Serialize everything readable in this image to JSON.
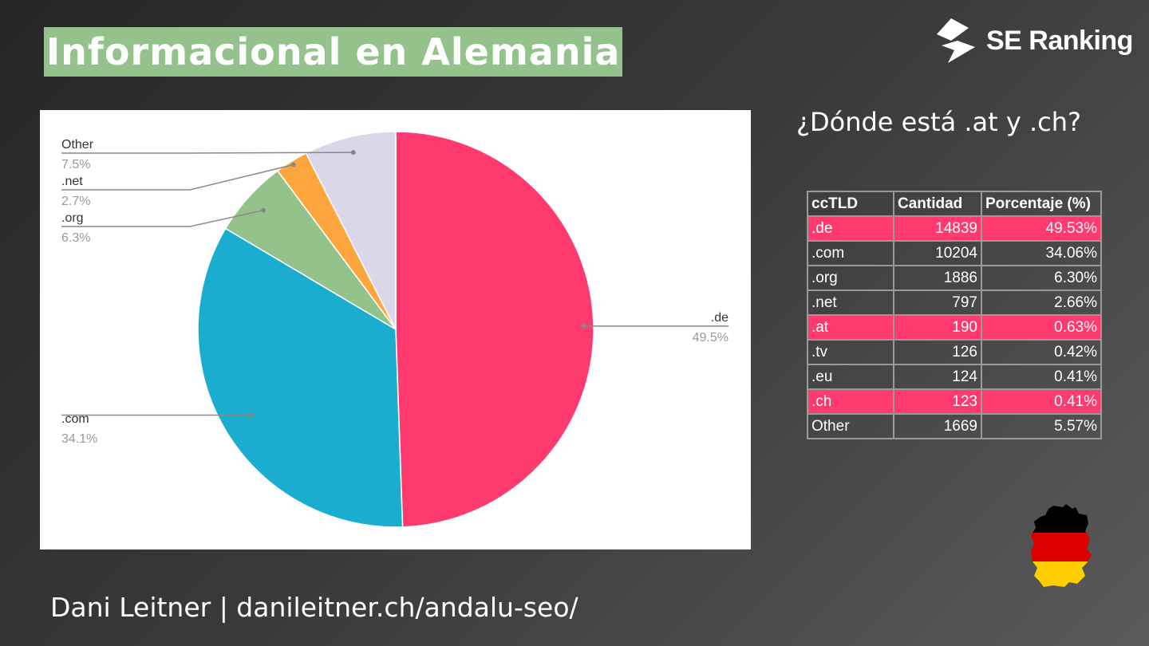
{
  "header": {
    "title": "Informacional en Alemania"
  },
  "brand": {
    "name": "SE Ranking"
  },
  "question": "¿Dónde está .at y .ch?",
  "table": {
    "headers": [
      "ccTLD",
      "Cantidad",
      "Porcentaje (%)"
    ],
    "rows": [
      {
        "tld": ".de",
        "count": "14839",
        "pct": "49.53%",
        "highlight": true
      },
      {
        "tld": ".com",
        "count": "10204",
        "pct": "34.06%",
        "highlight": false
      },
      {
        "tld": ".org",
        "count": "1886",
        "pct": "6.30%",
        "highlight": false
      },
      {
        "tld": ".net",
        "count": "797",
        "pct": "2.66%",
        "highlight": false
      },
      {
        "tld": ".at",
        "count": "190",
        "pct": "0.63%",
        "highlight": true
      },
      {
        "tld": ".tv",
        "count": "126",
        "pct": "0.42%",
        "highlight": false
      },
      {
        "tld": ".eu",
        "count": "124",
        "pct": "0.41%",
        "highlight": false
      },
      {
        "tld": ".ch",
        "count": "123",
        "pct": "0.41%",
        "highlight": true
      },
      {
        "tld": "Other",
        "count": "1669",
        "pct": "5.57%",
        "highlight": false
      }
    ]
  },
  "footer": {
    "text": "Dani Leitner | danileitner.ch/andalu-seo/"
  },
  "colors": {
    "highlight": "#fe3a6f",
    "title_bg": "#93c28b"
  },
  "chart_data": {
    "type": "pie",
    "slices": [
      {
        "label": ".de",
        "value": 49.5,
        "display": "49.5%",
        "color": "#fe3a6f"
      },
      {
        "label": ".com",
        "value": 34.1,
        "display": "34.1%",
        "color": "#1aadcf"
      },
      {
        "label": ".org",
        "value": 6.3,
        "display": "6.3%",
        "color": "#93c28b"
      },
      {
        "label": ".net",
        "value": 2.7,
        "display": "2.7%",
        "color": "#fda640"
      },
      {
        "label": "Other",
        "value": 7.5,
        "display": "7.5%",
        "color": "#dcd6ea"
      }
    ],
    "legend": "callout-labels"
  }
}
